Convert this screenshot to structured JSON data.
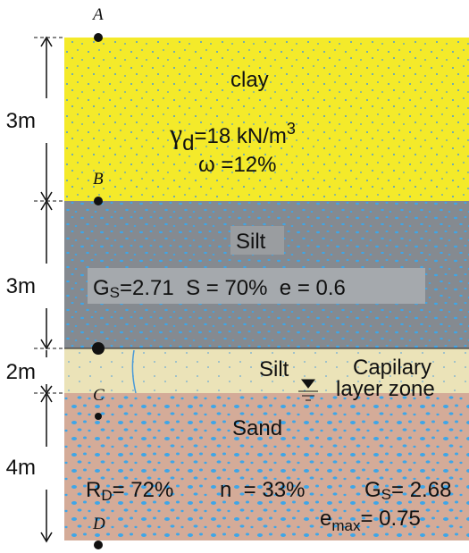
{
  "points": [
    "A",
    "B",
    "C",
    "D"
  ],
  "layers": [
    {
      "thickness": "3m",
      "name": "clay",
      "properties": [
        {
          "symbol": "γ",
          "sub": "d",
          "text": "=18 kN/m",
          "sup": "3"
        },
        {
          "symbol": "ω",
          "text": " =12%"
        }
      ]
    },
    {
      "thickness": "3m",
      "name": "Silt",
      "properties": [
        {
          "symbol": "G",
          "sub": "S",
          "text": "=2.71  S = 70%  e = 0.6"
        }
      ]
    },
    {
      "thickness": "2m",
      "name": "Silt",
      "note": [
        "Capilary",
        "layer zone"
      ]
    },
    {
      "thickness": "4m",
      "name": "Sand",
      "properties": [
        {
          "symbol": "R",
          "sub": "D",
          "text": "= 72%"
        },
        {
          "text": "n  = 33%"
        },
        {
          "symbol": "G",
          "sub": "S",
          "text": "= 2.68"
        },
        {
          "symbol": "e",
          "sub": "max",
          "text": "= 0.75"
        }
      ]
    }
  ]
}
